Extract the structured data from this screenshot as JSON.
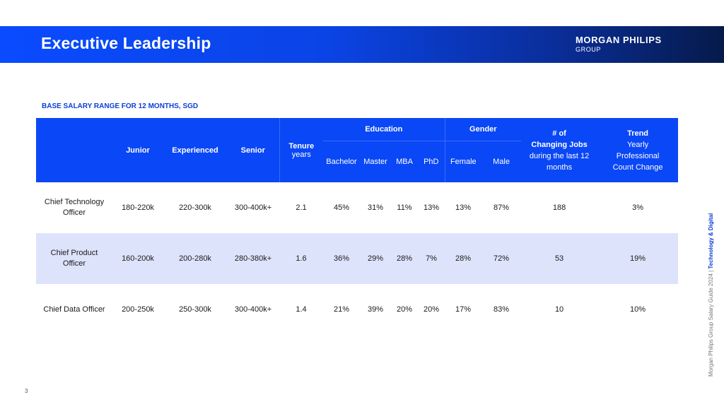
{
  "header": {
    "title": "Executive Leadership",
    "logo_main": "MORGAN PHILIPS",
    "logo_sub": "GROUP"
  },
  "section_label": "BASE SALARY RANGE FOR 12 MONTHS, SGD",
  "table": {
    "columns": {
      "junior": "Junior",
      "experienced": "Experienced",
      "senior": "Senior",
      "tenure": "Tenure",
      "tenure_sub": "years",
      "education": "Education",
      "bachelor": "Bachelor",
      "master": "Master",
      "mba": "MBA",
      "phd": "PhD",
      "gender": "Gender",
      "female": "Female",
      "male": "Male",
      "jobs_line1": "# of",
      "jobs_line2": "Changing Jobs",
      "jobs_line3": "during the last 12",
      "jobs_line4": "months",
      "trend_line1": "Trend",
      "trend_line2": "Yearly",
      "trend_line3": "Professional",
      "trend_line4": "Count Change"
    },
    "rows": [
      {
        "role_line1": "Chief Technology",
        "role_line2": "Officer",
        "junior": "180-220k",
        "experienced": "220-300k",
        "senior": "300-400k+",
        "tenure": "2.1",
        "bachelor": "45%",
        "master": "31%",
        "mba": "11%",
        "phd": "13%",
        "female": "13%",
        "male": "87%",
        "jobs": "188",
        "trend": "3%"
      },
      {
        "role_line1": "Chief Product",
        "role_line2": "Officer",
        "junior": "160-200k",
        "experienced": "200-280k",
        "senior": "280-380k+",
        "tenure": "1.6",
        "bachelor": "36%",
        "master": "29%",
        "mba": "28%",
        "phd": "7%",
        "female": "28%",
        "male": "72%",
        "jobs": "53",
        "trend": "19%"
      },
      {
        "role_line1": "Chief Data Officer",
        "role_line2": "",
        "junior": "200-250k",
        "experienced": "250-300k",
        "senior": "300-400k+",
        "tenure": "1.4",
        "bachelor": "21%",
        "master": "39%",
        "mba": "20%",
        "phd": "20%",
        "female": "17%",
        "male": "83%",
        "jobs": "10",
        "trend": "10%"
      }
    ]
  },
  "side_note": {
    "prefix": "Morgan Philips Group Salary Guide 2024 | ",
    "emphasis": "Technology & Digital"
  },
  "page_number": "3",
  "colors": {
    "banner_blue": "#0a4bff",
    "header_blue": "#0a47f6",
    "row_highlight": "#dde3fb",
    "label_blue": "#0b3fd6"
  }
}
